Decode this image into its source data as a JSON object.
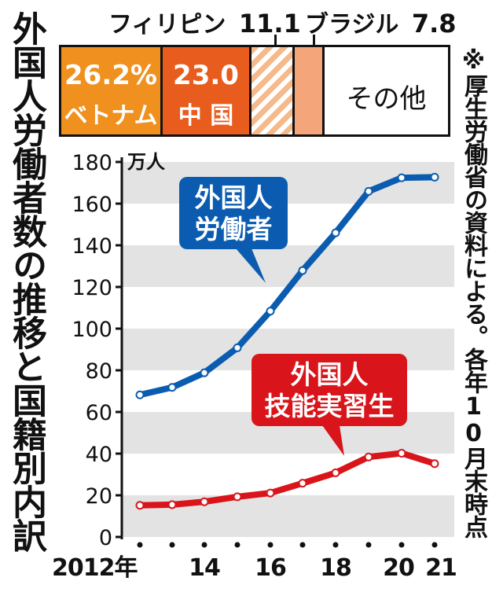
{
  "title": "外国人労働者数の推移と国籍別内訳",
  "source_note": "※厚生労働省の資料による。各年10月末時点",
  "colors": {
    "vietnam": "#f0901e",
    "china": "#e85c1e",
    "philippines_stripe": "#f6b98a",
    "brazil": "#f4a57a",
    "other": "#ffffff",
    "workers_line": "#0b5cb0",
    "trainees_line": "#d9141a",
    "gridband": "#e3e3e3"
  },
  "share_bar": {
    "vietnam": {
      "label": "ベトナム",
      "value": "26.2%",
      "share": 26.2
    },
    "china": {
      "label": "中 国",
      "value": "23.0",
      "share": 23.0
    },
    "philippines": {
      "label": "フィリピン",
      "value": "11.1",
      "share": 11.1
    },
    "brazil": {
      "label": "ブラジル",
      "value": "7.8",
      "share": 7.8
    },
    "other": {
      "label": "その他",
      "share": 31.9
    }
  },
  "chart_data": {
    "type": "line",
    "unit_label": "万人",
    "x": [
      2012,
      2013,
      2014,
      2015,
      2016,
      2017,
      2018,
      2019,
      2020,
      2021
    ],
    "x_tick_labels": [
      {
        "year": 2012,
        "label": "2012年"
      },
      {
        "year": 2014,
        "label": "14"
      },
      {
        "year": 2016,
        "label": "16"
      },
      {
        "year": 2018,
        "label": "18"
      },
      {
        "year": 2020,
        "label": "20"
      },
      {
        "year": 2021,
        "label": "21"
      }
    ],
    "ylim": [
      0,
      180
    ],
    "yticks": [
      0,
      20,
      40,
      60,
      80,
      100,
      120,
      140,
      160,
      180
    ],
    "series": [
      {
        "name": "外国人労働者",
        "label_lines": [
          "外国人",
          "労働者"
        ],
        "color": "#0b5cb0",
        "values": [
          68.2,
          71.8,
          78.8,
          90.8,
          108.4,
          127.9,
          146.0,
          165.9,
          172.4,
          172.7
        ]
      },
      {
        "name": "外国人技能実習生",
        "label_lines": [
          "外国人",
          "技能実習生"
        ],
        "color": "#d9141a",
        "values": [
          15.2,
          15.5,
          16.9,
          19.3,
          21.1,
          25.8,
          30.8,
          38.4,
          40.2,
          35.2
        ]
      }
    ]
  }
}
